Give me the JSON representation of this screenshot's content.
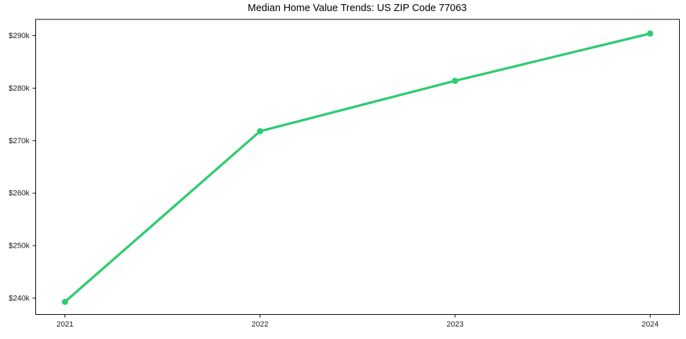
{
  "chart_data": {
    "type": "line",
    "title": "Median Home Value Trends: US ZIP Code 77063",
    "x": [
      2021,
      2022,
      2023,
      2024
    ],
    "values": [
      239300,
      271800,
      281400,
      290400
    ],
    "xlabel": "",
    "ylabel": "",
    "xlim": [
      2020.85,
      2024.15
    ],
    "ylim": [
      236900,
      293100
    ],
    "xticks": [
      {
        "value": 2021,
        "label": "2021"
      },
      {
        "value": 2022,
        "label": "2022"
      },
      {
        "value": 2023,
        "label": "2023"
      },
      {
        "value": 2024,
        "label": "2024"
      }
    ],
    "yticks": [
      {
        "value": 240000,
        "label": "$240k"
      },
      {
        "value": 250000,
        "label": "$250k"
      },
      {
        "value": 260000,
        "label": "$260k"
      },
      {
        "value": 270000,
        "label": "$270k"
      },
      {
        "value": 280000,
        "label": "$280k"
      },
      {
        "value": 290000,
        "label": "$290k"
      }
    ],
    "grid": false,
    "legend": null,
    "line_color": "#2ecc71",
    "marker": "circle",
    "line_width": 3.5,
    "marker_radius": 4.5,
    "frame_color": "#000000",
    "text_color": "#1a1a1a",
    "background": "#ffffff"
  }
}
